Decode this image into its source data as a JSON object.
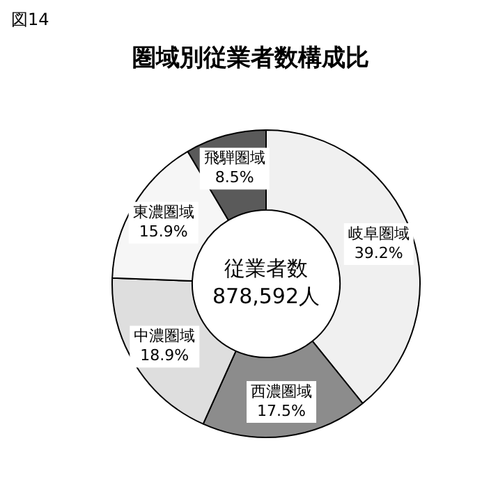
{
  "chart_data": {
    "type": "donut",
    "title": "圏域別従業者数構成比",
    "categories": [
      "岐阜圏域",
      "西濃圏域",
      "中濃圏域",
      "東濃圏域",
      "飛騨圏域"
    ],
    "values": [
      39.2,
      17.5,
      18.9,
      15.9,
      8.5
    ],
    "value_labels": [
      "39.2%",
      "17.5%",
      "18.9%",
      "15.9%",
      "8.5%"
    ],
    "colors": [
      "#f0f0f0",
      "#8c8c8c",
      "#dedede",
      "#f6f6f6",
      "#5a5a5a"
    ],
    "annotations": [
      "図14",
      "従業者数",
      "878,592人"
    ],
    "legend": false
  }
}
